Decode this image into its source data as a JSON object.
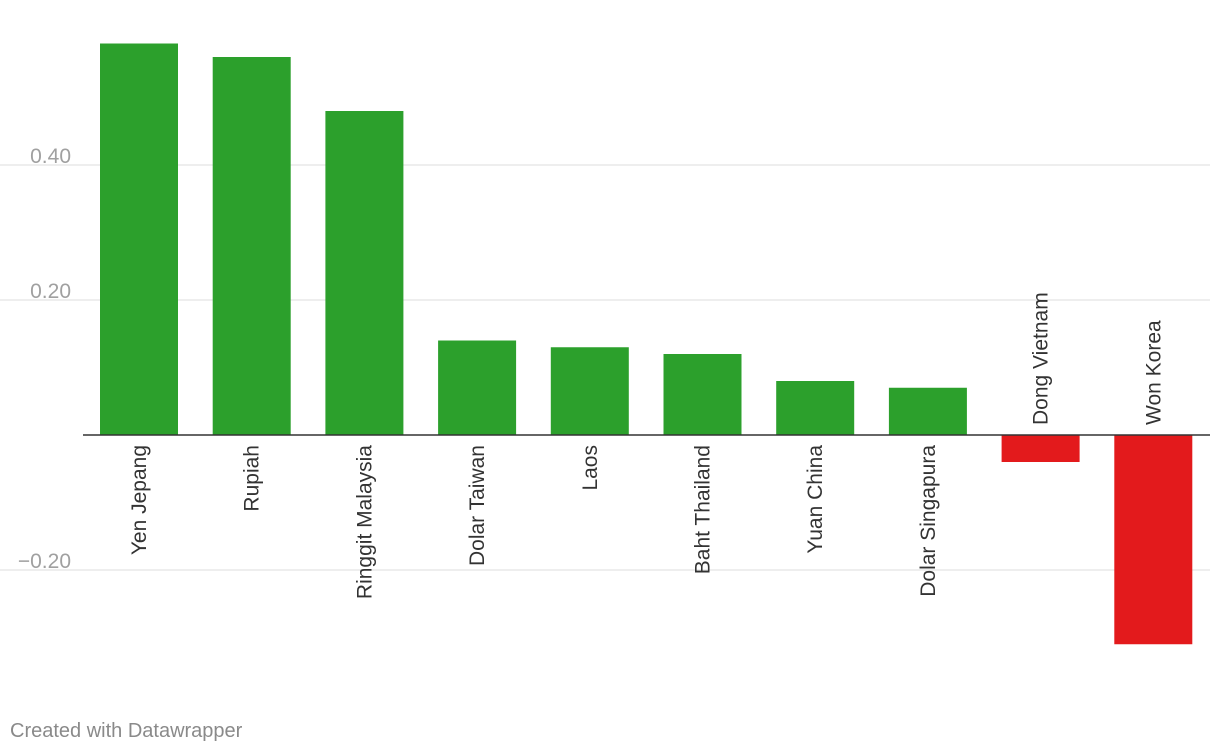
{
  "chart_data": {
    "type": "bar",
    "categories": [
      "Yen Jepang",
      "Rupiah",
      "Ringgit Malaysia",
      "Dolar Taiwan",
      "Laos",
      "Baht Thailand",
      "Yuan China",
      "Dolar Singapura",
      "Dong Vietnam",
      "Won Korea"
    ],
    "values": [
      0.58,
      0.56,
      0.48,
      0.14,
      0.13,
      0.12,
      0.08,
      0.07,
      -0.04,
      -0.31
    ],
    "yticks": [
      {
        "value": -0.2,
        "label": "−0.20"
      },
      {
        "value": 0.2,
        "label": "0.20"
      },
      {
        "value": 0.4,
        "label": "0.40"
      }
    ],
    "ylim": [
      -0.31,
      0.58
    ],
    "title": "",
    "xlabel": "",
    "ylabel": "",
    "grid": true,
    "colors": {
      "positive": "#2ca02c",
      "negative": "#e31a1c",
      "grid": "#dddddd",
      "baseline": "#333333"
    }
  },
  "footer": {
    "credit": "Created with Datawrapper"
  }
}
